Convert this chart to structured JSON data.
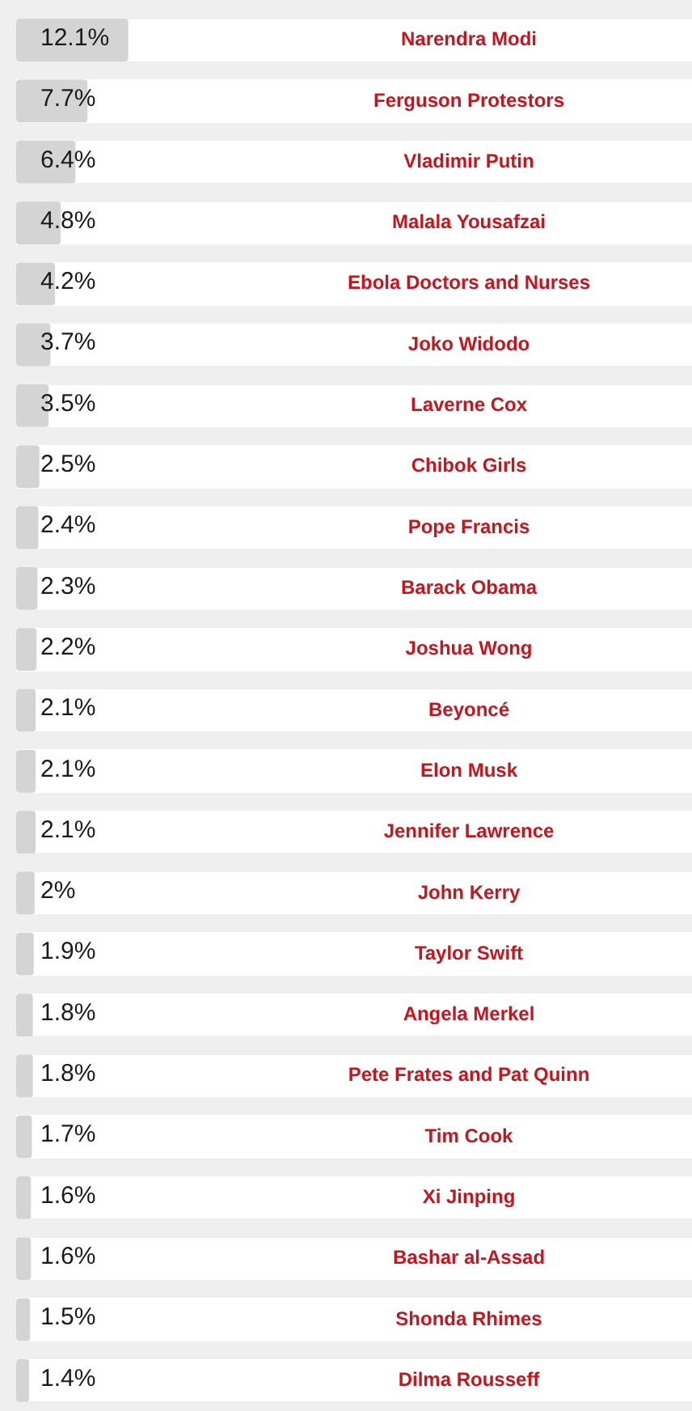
{
  "chart_data": {
    "type": "bar",
    "orientation": "horizontal",
    "categories": [
      "Narendra Modi",
      "Ferguson Protestors",
      "Vladimir Putin",
      "Malala Yousafzai",
      "Ebola Doctors and Nurses",
      "Joko Widodo",
      "Laverne Cox",
      "Chibok Girls",
      "Pope Francis",
      "Barack Obama",
      "Joshua Wong",
      "Beyoncé",
      "Elon Musk",
      "Jennifer Lawrence",
      "John Kerry",
      "Taylor Swift",
      "Angela Merkel",
      "Pete Frates and Pat Quinn",
      "Tim Cook",
      "Xi Jinping",
      "Bashar al-Assad",
      "Shonda Rhimes",
      "Dilma Rousseff"
    ],
    "values": [
      12.1,
      7.7,
      6.4,
      4.8,
      4.2,
      3.7,
      3.5,
      2.5,
      2.4,
      2.3,
      2.2,
      2.1,
      2.1,
      2.1,
      2,
      1.9,
      1.8,
      1.8,
      1.7,
      1.6,
      1.6,
      1.5,
      1.4
    ],
    "value_labels": [
      "12.1%",
      "7.7%",
      "6.4%",
      "4.8%",
      "4.2%",
      "3.7%",
      "3.5%",
      "2.5%",
      "2.4%",
      "2.3%",
      "2.2%",
      "2.1%",
      "2.1%",
      "2.1%",
      "2%",
      "1.9%",
      "1.8%",
      "1.8%",
      "1.7%",
      "1.6%",
      "1.6%",
      "1.5%",
      "1.4%"
    ],
    "color": "#d4d4d4",
    "xlim": [
      0,
      73
    ],
    "tick_labels": false,
    "legend": false
  }
}
